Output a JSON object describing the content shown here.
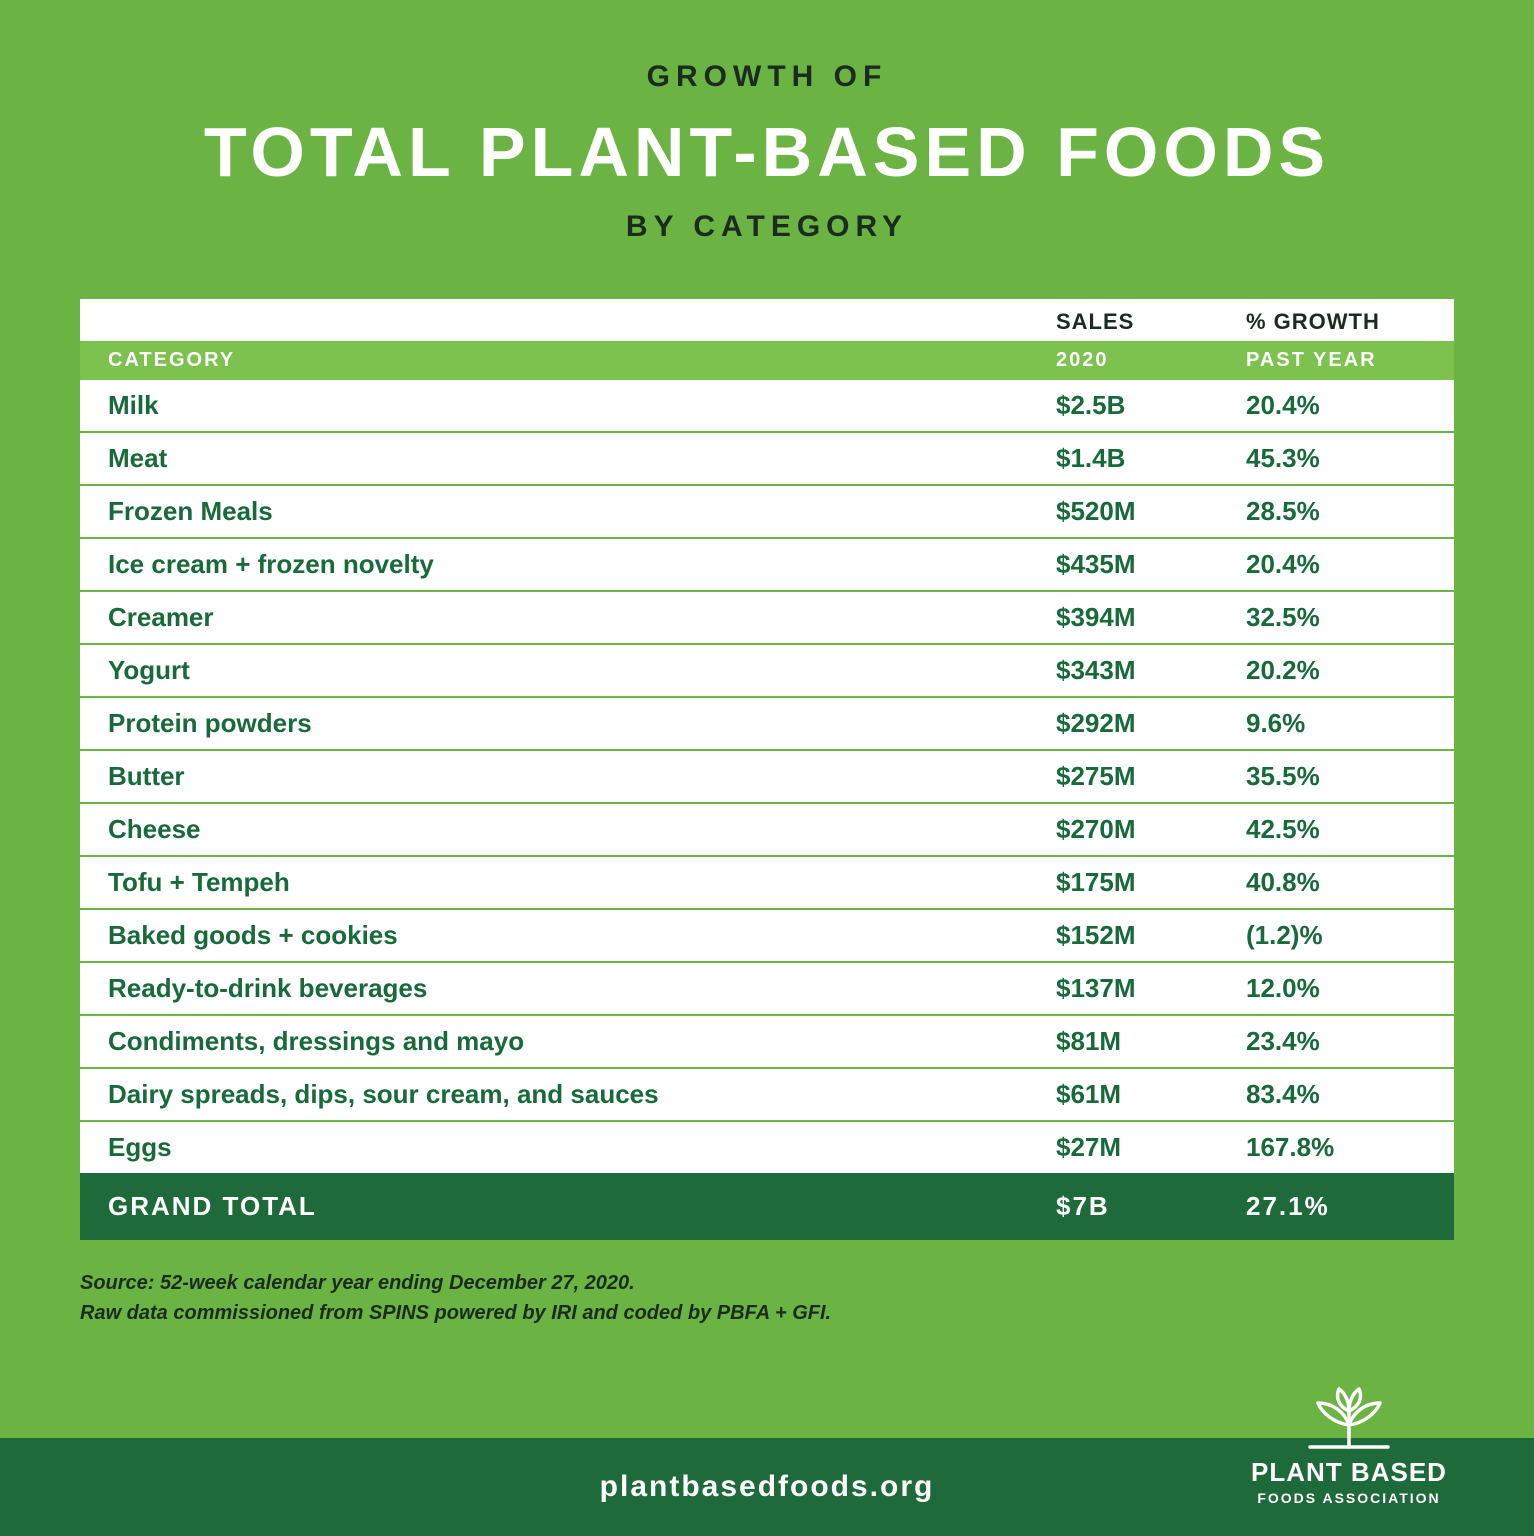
{
  "colors": {
    "bg": "#6bb343",
    "row_text": "#186a3b",
    "dark_green": "#1f6a3a",
    "header_sub_bg": "#7dc24e",
    "heading_dark": "#1b2b20",
    "white": "#ffffff"
  },
  "heading": {
    "eyebrow": "GROWTH OF",
    "title": "TOTAL PLANT-BASED FOODS",
    "sub": "BY CATEGORY"
  },
  "table": {
    "top_headers": {
      "category": "",
      "sales": "SALES",
      "growth": "% GROWTH"
    },
    "sub_headers": {
      "category": "CATEGORY",
      "sales": "2020",
      "growth": "PAST YEAR"
    },
    "rows": [
      {
        "category": "Milk",
        "sales": "$2.5B",
        "growth": "20.4%"
      },
      {
        "category": "Meat",
        "sales": "$1.4B",
        "growth": "45.3%"
      },
      {
        "category": "Frozen Meals",
        "sales": "$520M",
        "growth": "28.5%"
      },
      {
        "category": "Ice cream + frozen novelty",
        "sales": "$435M",
        "growth": "20.4%"
      },
      {
        "category": "Creamer",
        "sales": "$394M",
        "growth": "32.5%"
      },
      {
        "category": "Yogurt",
        "sales": "$343M",
        "growth": "20.2%"
      },
      {
        "category": "Protein powders",
        "sales": "$292M",
        "growth": "9.6%"
      },
      {
        "category": "Butter",
        "sales": "$275M",
        "growth": "35.5%"
      },
      {
        "category": "Cheese",
        "sales": "$270M",
        "growth": "42.5%"
      },
      {
        "category": "Tofu + Tempeh",
        "sales": "$175M",
        "growth": "40.8%"
      },
      {
        "category": "Baked goods + cookies",
        "sales": "$152M",
        "growth": "(1.2)%"
      },
      {
        "category": "Ready-to-drink beverages",
        "sales": "$137M",
        "growth": "12.0%"
      },
      {
        "category": "Condiments, dressings and mayo",
        "sales": "$81M",
        "growth": "23.4%"
      },
      {
        "category": "Dairy spreads, dips, sour cream, and sauces",
        "sales": "$61M",
        "growth": "83.4%"
      },
      {
        "category": "Eggs",
        "sales": "$27M",
        "growth": "167.8%"
      }
    ],
    "total": {
      "label": "GRAND TOTAL",
      "sales": "$7B",
      "growth": "27.1%"
    }
  },
  "source": {
    "line1": "Source: 52-week calendar year ending December 27, 2020.",
    "line2": "Raw data commissioned from SPINS powered by IRI and coded by PBFA + GFI."
  },
  "footer": {
    "url": "plantbasedfoods.org"
  },
  "logo": {
    "line1": "PLANT BASED",
    "line2": "FOODS ASSOCIATION"
  }
}
